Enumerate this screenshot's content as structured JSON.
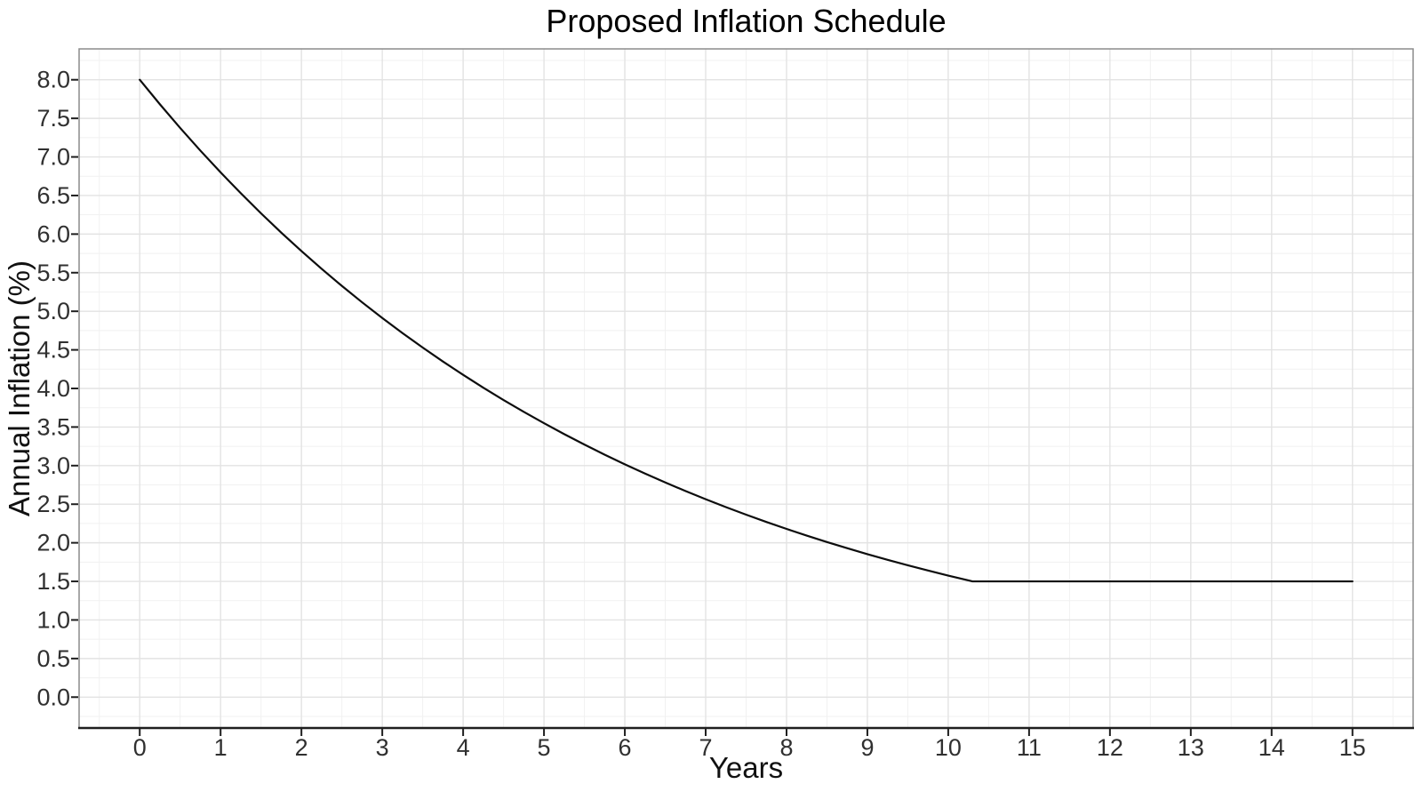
{
  "style": {
    "background": "#ffffff",
    "panel_background": "#ffffff",
    "grid_major_color": "#e3e3e3",
    "grid_minor_color": "#f1f1f1",
    "panel_border_color": "#8c8c8c",
    "axis_line_color": "#1f1f1f",
    "tick_color": "#1f1f1f",
    "tick_label_color": "#303030",
    "title_color": "#000000",
    "axis_title_color": "#111111"
  },
  "chart_data": {
    "type": "line",
    "title": "Proposed Inflation Schedule",
    "xlabel": "Years",
    "ylabel": "Annual Inflation (%)",
    "xlim": [
      -0.75,
      15.75
    ],
    "ylim": [
      -0.4,
      8.4
    ],
    "grid": true,
    "legend": "none",
    "curve_rule": "y = max(1.5, 8 * 0.85^x)",
    "x_ticks": [
      0,
      1,
      2,
      3,
      4,
      5,
      6,
      7,
      8,
      9,
      10,
      11,
      12,
      13,
      14,
      15
    ],
    "x_tick_labels": [
      "0",
      "1",
      "2",
      "3",
      "4",
      "5",
      "6",
      "7",
      "8",
      "9",
      "10",
      "11",
      "12",
      "13",
      "14",
      "15"
    ],
    "y_ticks": [
      0,
      0.5,
      1,
      1.5,
      2,
      2.5,
      3,
      3.5,
      4,
      4.5,
      5,
      5.5,
      6,
      6.5,
      7,
      7.5,
      8
    ],
    "y_tick_labels": [
      "0.0",
      "0.5",
      "1.0",
      "1.5",
      "2.0",
      "2.5",
      "3.0",
      "3.5",
      "4.0",
      "4.5",
      "5.0",
      "5.5",
      "6.0",
      "6.5",
      "7.0",
      "7.5",
      "8.0"
    ],
    "x_minor_ticks": [
      -0.5,
      0.5,
      1.5,
      2.5,
      3.5,
      4.5,
      5.5,
      6.5,
      7.5,
      8.5,
      9.5,
      10.5,
      11.5,
      12.5,
      13.5,
      14.5,
      15.5
    ],
    "y_minor_ticks": [
      -0.25,
      0.25,
      0.75,
      1.25,
      1.75,
      2.25,
      2.75,
      3.25,
      3.75,
      4.25,
      4.75,
      5.25,
      5.75,
      6.25,
      6.75,
      7.25,
      7.75,
      8.25
    ],
    "series": [
      {
        "name": "Annual Inflation",
        "color": "#0d0d0d",
        "x": [
          0,
          0.25,
          0.5,
          0.75,
          1,
          1.25,
          1.5,
          1.75,
          2,
          2.25,
          2.5,
          2.75,
          3,
          3.25,
          3.5,
          3.75,
          4,
          4.25,
          4.5,
          4.75,
          5,
          5.25,
          5.5,
          5.75,
          6,
          6.25,
          6.5,
          6.75,
          7,
          7.25,
          7.5,
          7.75,
          8,
          8.25,
          8.5,
          8.75,
          9,
          9.25,
          9.5,
          9.75,
          10,
          10.25,
          10.3,
          11,
          12,
          13,
          14,
          15
        ],
        "y": [
          8.0,
          7.6815,
          7.3756,
          7.082,
          6.8,
          6.5293,
          6.2693,
          6.0197,
          5.78,
          5.5499,
          5.3289,
          5.1167,
          4.913,
          4.7174,
          4.5296,
          4.3492,
          4.1761,
          4.0098,
          3.8501,
          3.6968,
          3.5496,
          3.4083,
          3.2726,
          3.1423,
          3.0172,
          2.8971,
          2.7817,
          2.671,
          2.5646,
          2.4625,
          2.3645,
          2.2703,
          2.1799,
          2.0931,
          2.0098,
          1.9298,
          1.8529,
          1.7792,
          1.7083,
          1.6403,
          1.575,
          1.5123,
          1.5,
          1.5,
          1.5,
          1.5,
          1.5,
          1.5
        ]
      }
    ]
  }
}
